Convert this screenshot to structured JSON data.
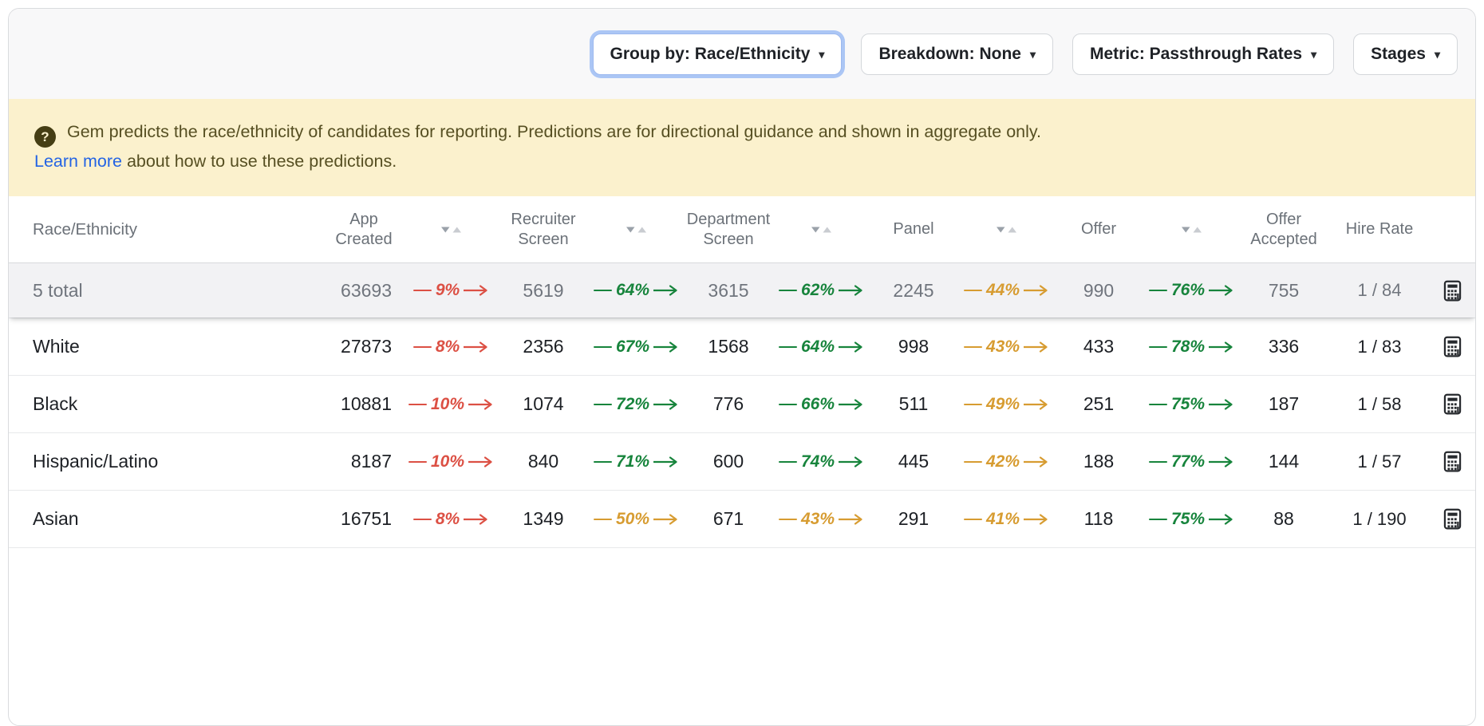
{
  "toolbar": {
    "group_by": "Group by: Race/Ethnicity",
    "breakdown": "Breakdown: None",
    "metric": "Metric: Passthrough Rates",
    "stages": "Stages"
  },
  "banner": {
    "icon": "question-mark",
    "line1": "Gem predicts the race/ethnicity of candidates for reporting. Predictions are for directional guidance and shown in aggregate only.",
    "link": "Learn more",
    "line2": "about how to use these predictions."
  },
  "table": {
    "label_header": "Race/Ethnicity",
    "stage_headers": [
      {
        "label": "App Created",
        "sortable": true
      },
      {
        "label": "Recruiter Screen",
        "sortable": true
      },
      {
        "label": "Department Screen",
        "sortable": true
      },
      {
        "label": "Panel",
        "sortable": true
      },
      {
        "label": "Offer",
        "sortable": true
      },
      {
        "label": "Offer Accepted",
        "sortable": false
      }
    ],
    "hire_rate_header": "Hire Rate",
    "rows": [
      {
        "label": "5 total",
        "is_total": true,
        "values": [
          "63693",
          "5619",
          "3615",
          "2245",
          "990",
          "755"
        ],
        "rates": [
          {
            "value": "9%",
            "color": "red"
          },
          {
            "value": "64%",
            "color": "green"
          },
          {
            "value": "62%",
            "color": "green"
          },
          {
            "value": "44%",
            "color": "amber"
          },
          {
            "value": "76%",
            "color": "green"
          }
        ],
        "hire_rate": "1 / 84"
      },
      {
        "label": "White",
        "is_total": false,
        "values": [
          "27873",
          "2356",
          "1568",
          "998",
          "433",
          "336"
        ],
        "rates": [
          {
            "value": "8%",
            "color": "red"
          },
          {
            "value": "67%",
            "color": "green"
          },
          {
            "value": "64%",
            "color": "green"
          },
          {
            "value": "43%",
            "color": "amber"
          },
          {
            "value": "78%",
            "color": "green"
          }
        ],
        "hire_rate": "1 / 83"
      },
      {
        "label": "Black",
        "is_total": false,
        "values": [
          "10881",
          "1074",
          "776",
          "511",
          "251",
          "187"
        ],
        "rates": [
          {
            "value": "10%",
            "color": "red"
          },
          {
            "value": "72%",
            "color": "green"
          },
          {
            "value": "66%",
            "color": "green"
          },
          {
            "value": "49%",
            "color": "amber"
          },
          {
            "value": "75%",
            "color": "green"
          }
        ],
        "hire_rate": "1 / 58"
      },
      {
        "label": "Hispanic/Latino",
        "is_total": false,
        "values": [
          "8187",
          "840",
          "600",
          "445",
          "188",
          "144"
        ],
        "rates": [
          {
            "value": "10%",
            "color": "red"
          },
          {
            "value": "71%",
            "color": "green"
          },
          {
            "value": "74%",
            "color": "green"
          },
          {
            "value": "42%",
            "color": "amber"
          },
          {
            "value": "77%",
            "color": "green"
          }
        ],
        "hire_rate": "1 / 57"
      },
      {
        "label": "Asian",
        "is_total": false,
        "values": [
          "16751",
          "1349",
          "671",
          "291",
          "118",
          "88"
        ],
        "rates": [
          {
            "value": "8%",
            "color": "red"
          },
          {
            "value": "50%",
            "color": "amber"
          },
          {
            "value": "43%",
            "color": "amber"
          },
          {
            "value": "41%",
            "color": "amber"
          },
          {
            "value": "75%",
            "color": "green"
          }
        ],
        "hire_rate": "1 / 190"
      }
    ]
  },
  "colors": {
    "red": "#dc5044",
    "green": "#17843c",
    "amber": "#d79c31",
    "link_blue": "#2464e4",
    "focus_ring": "#abc6f5",
    "banner_bg": "#fbf1cd"
  }
}
